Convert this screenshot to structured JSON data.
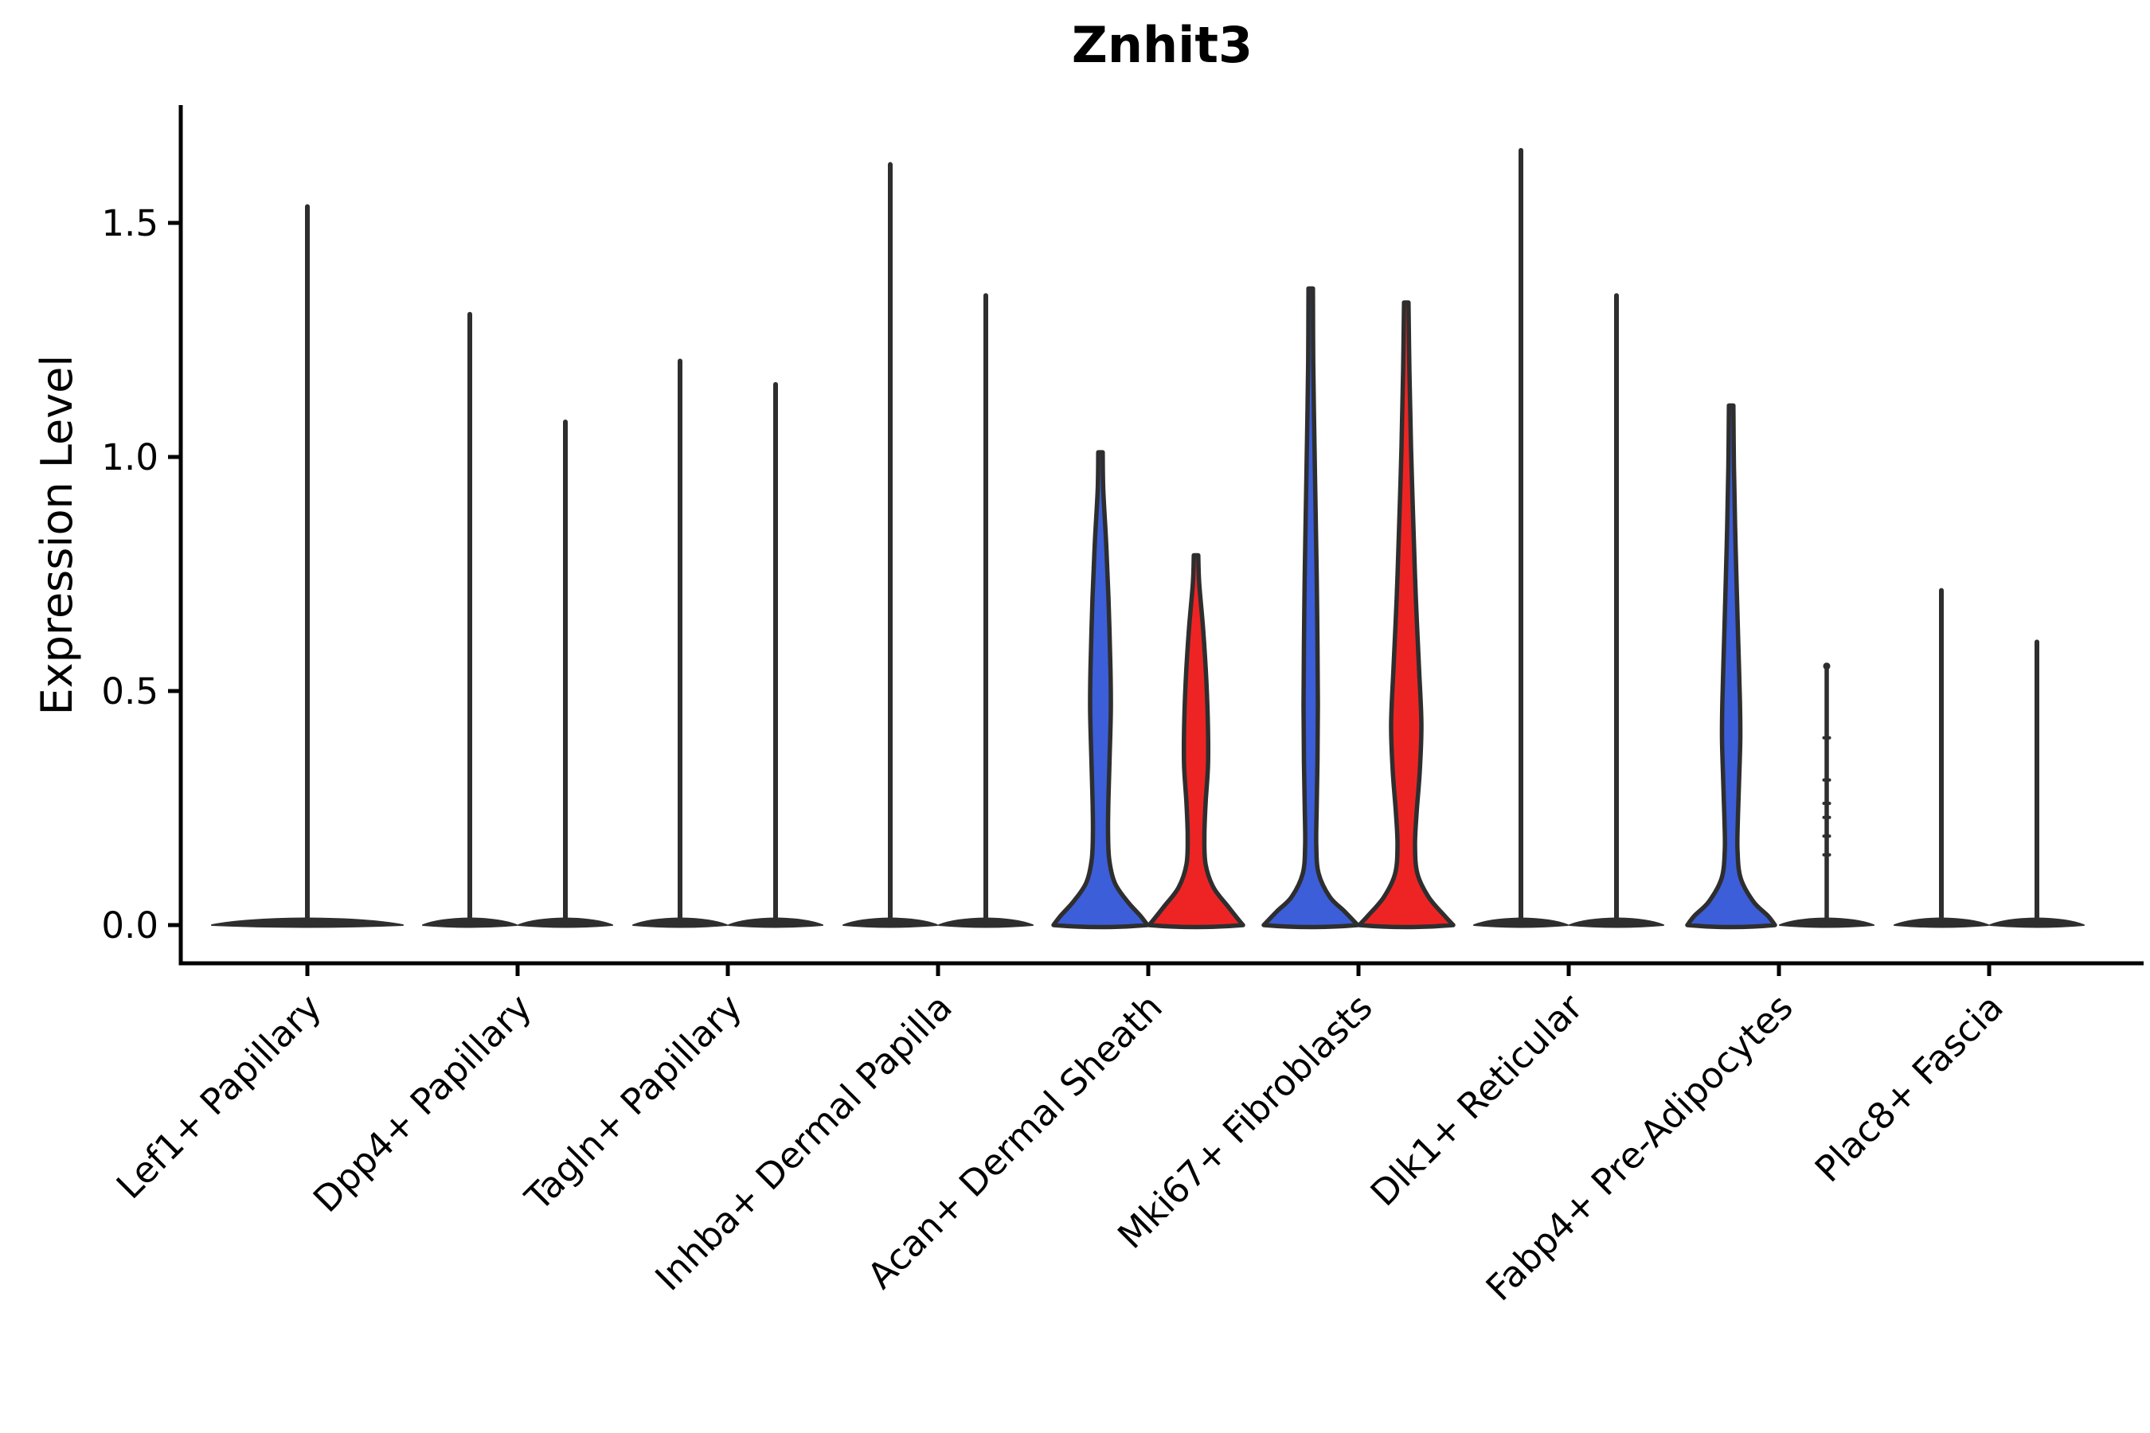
{
  "title": "Znhit3",
  "axes": {
    "ylabel": "Expression Level",
    "yticks": [
      0.0,
      0.5,
      1.0,
      1.5
    ],
    "ytick_labels": [
      "0.0",
      "0.5",
      "1.0",
      "1.5"
    ],
    "ylim": [
      0,
      1.75
    ]
  },
  "colors": {
    "blue": "#3C5ED8",
    "red": "#EE2424",
    "outline": "#2E2E2E",
    "axis": "#000000",
    "background": "#ffffff"
  },
  "chart_data": {
    "type": "violin",
    "title": "Znhit3",
    "xlabel": "",
    "ylabel": "Expression Level",
    "ylim": [
      0,
      1.75
    ],
    "yticks": [
      0.0,
      0.5,
      1.0,
      1.5
    ],
    "grid": false,
    "legend": "none",
    "categories": [
      "Lef1+ Papillary",
      "Dpp4+ Papillary",
      "Tagln+ Papillary",
      "Inhba+ Dermal Papilla",
      "Acan+ Dermal Sheath",
      "Mki67+ Fibroblasts",
      "Dlk1+ Reticular",
      "Fabp4+ Pre-Adipocytes",
      "Plac8+ Fascia"
    ],
    "groups": [
      {
        "category": "Lef1+ Papillary",
        "violins": [
          {
            "position": "single",
            "color": "none",
            "style": "spike",
            "max": 1.54
          }
        ]
      },
      {
        "category": "Dpp4+ Papillary",
        "violins": [
          {
            "position": "left",
            "color": "none",
            "style": "spike",
            "max": 1.31
          },
          {
            "position": "right",
            "color": "none",
            "style": "spike",
            "max": 1.08
          }
        ]
      },
      {
        "category": "Tagln+ Papillary",
        "violins": [
          {
            "position": "left",
            "color": "none",
            "style": "spike",
            "max": 1.21
          },
          {
            "position": "right",
            "color": "none",
            "style": "spike",
            "max": 1.16
          }
        ]
      },
      {
        "category": "Inhba+ Dermal Papilla",
        "violins": [
          {
            "position": "left",
            "color": "none",
            "style": "spike",
            "max": 1.63
          },
          {
            "position": "right",
            "color": "none",
            "style": "spike",
            "max": 1.35
          }
        ]
      },
      {
        "category": "Acan+ Dermal Sheath",
        "violins": [
          {
            "position": "left",
            "color": "blue",
            "style": "violin",
            "max": 1.01,
            "profile": [
              [
                1.01,
                2.8
              ],
              [
                0.93,
                3.5
              ],
              [
                0.82,
                7
              ],
              [
                0.7,
                10
              ],
              [
                0.55,
                12.5
              ],
              [
                0.46,
                13
              ],
              [
                0.36,
                11.5
              ],
              [
                0.27,
                10
              ],
              [
                0.2,
                9.5
              ],
              [
                0.14,
                11
              ],
              [
                0.09,
                18
              ],
              [
                0.05,
                34
              ],
              [
                0.02,
                50
              ],
              [
                0.0,
                59
              ]
            ]
          },
          {
            "position": "right",
            "color": "red",
            "style": "violin",
            "max": 0.79,
            "profile": [
              [
                0.79,
                2.8
              ],
              [
                0.73,
                4
              ],
              [
                0.63,
                9
              ],
              [
                0.52,
                13
              ],
              [
                0.42,
                15
              ],
              [
                0.34,
                15
              ],
              [
                0.26,
                12
              ],
              [
                0.19,
                10.5
              ],
              [
                0.13,
                12
              ],
              [
                0.08,
                22
              ],
              [
                0.04,
                40
              ],
              [
                0.01,
                54
              ],
              [
                0.0,
                59
              ]
            ]
          }
        ]
      },
      {
        "category": "Mki67+ Fibroblasts",
        "violins": [
          {
            "position": "left",
            "color": "blue",
            "style": "violin",
            "max": 1.36,
            "profile": [
              [
                1.36,
                2.8
              ],
              [
                1.2,
                3.2
              ],
              [
                1.05,
                4.5
              ],
              [
                0.9,
                6
              ],
              [
                0.75,
                7.5
              ],
              [
                0.6,
                8.5
              ],
              [
                0.47,
                9
              ],
              [
                0.35,
                8.5
              ],
              [
                0.25,
                7.5
              ],
              [
                0.17,
                7
              ],
              [
                0.11,
                10
              ],
              [
                0.06,
                24
              ],
              [
                0.03,
                42
              ],
              [
                0.0,
                59
              ]
            ]
          },
          {
            "position": "right",
            "color": "red",
            "style": "violin",
            "max": 1.33,
            "profile": [
              [
                1.33,
                2.8
              ],
              [
                1.18,
                4
              ],
              [
                1.02,
                6
              ],
              [
                0.85,
                9
              ],
              [
                0.7,
                12
              ],
              [
                0.55,
                16
              ],
              [
                0.43,
                19
              ],
              [
                0.33,
                17
              ],
              [
                0.24,
                13
              ],
              [
                0.17,
                11
              ],
              [
                0.11,
                14
              ],
              [
                0.06,
                28
              ],
              [
                0.02,
                48
              ],
              [
                0.0,
                59
              ]
            ]
          }
        ]
      },
      {
        "category": "Dlk1+ Reticular",
        "violins": [
          {
            "position": "left",
            "color": "none",
            "style": "spike",
            "max": 1.66
          },
          {
            "position": "right",
            "color": "none",
            "style": "spike",
            "max": 1.35
          }
        ]
      },
      {
        "category": "Fabp4+ Pre-Adipocytes",
        "violins": [
          {
            "position": "left",
            "color": "blue",
            "style": "violin",
            "max": 1.11,
            "profile": [
              [
                1.11,
                2.8
              ],
              [
                0.98,
                3.5
              ],
              [
                0.85,
                5
              ],
              [
                0.72,
                7
              ],
              [
                0.6,
                9
              ],
              [
                0.48,
                11
              ],
              [
                0.4,
                11.5
              ],
              [
                0.31,
                10
              ],
              [
                0.23,
                8.5
              ],
              [
                0.16,
                8
              ],
              [
                0.1,
                12
              ],
              [
                0.05,
                28
              ],
              [
                0.02,
                46
              ],
              [
                0.0,
                55
              ]
            ]
          },
          {
            "position": "right",
            "color": "none",
            "style": "line",
            "max": 0.56,
            "point_marks": [
              0.4,
              0.31,
              0.26,
              0.23,
              0.19,
              0.15
            ]
          }
        ]
      },
      {
        "category": "Plac8+ Fascia",
        "violins": [
          {
            "position": "left",
            "color": "none",
            "style": "spike",
            "max": 0.72
          },
          {
            "position": "right",
            "color": "none",
            "style": "spike",
            "max": 0.61
          }
        ]
      }
    ]
  }
}
